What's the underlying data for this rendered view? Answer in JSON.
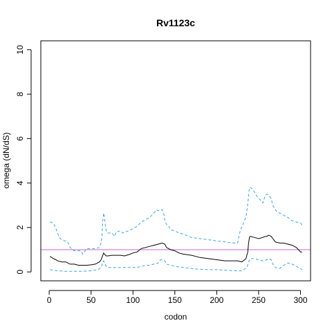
{
  "chart_data": {
    "type": "line",
    "title": "Rv1123c",
    "xlabel": "codon",
    "ylabel": "omega (dN/dS)",
    "xlim": [
      -10,
      312
    ],
    "ylim": [
      -0.4,
      10.4
    ],
    "xticks": [
      0,
      50,
      100,
      150,
      200,
      250,
      300
    ],
    "yticks": [
      0,
      2,
      4,
      6,
      8,
      10
    ],
    "grid": false,
    "legend": "none",
    "reference_line": {
      "y": 1,
      "color": "#cc66cc"
    },
    "series": [
      {
        "role": "upper",
        "color": "#33a6e6",
        "dash": true,
        "x": [
          1,
          5,
          8,
          10,
          12,
          15,
          18,
          20,
          22,
          25,
          28,
          30,
          35,
          38,
          40,
          45,
          50,
          55,
          60,
          62,
          63,
          64,
          65,
          66,
          67,
          68,
          70,
          75,
          78,
          80,
          85,
          88,
          90,
          95,
          100,
          105,
          110,
          115,
          120,
          125,
          128,
          130,
          135,
          137,
          138,
          140,
          142,
          145,
          150,
          155,
          160,
          170,
          180,
          190,
          200,
          210,
          220,
          225,
          227,
          229,
          231,
          233,
          235,
          236,
          238,
          239,
          240,
          242,
          245,
          248,
          250,
          252,
          255,
          258,
          260,
          262,
          265,
          267,
          270,
          272,
          275,
          280,
          285,
          290,
          295,
          300,
          302
        ],
        "y": [
          2.25,
          2.2,
          1.95,
          1.75,
          1.55,
          1.45,
          1.4,
          1.4,
          1.35,
          1.1,
          1.0,
          0.95,
          0.95,
          0.95,
          0.8,
          1.05,
          1.05,
          1.05,
          1.1,
          1.3,
          1.6,
          2.3,
          2.65,
          2.45,
          2.1,
          1.85,
          1.75,
          1.75,
          1.6,
          1.8,
          1.85,
          1.75,
          1.8,
          1.85,
          1.95,
          2.05,
          2.25,
          2.35,
          2.45,
          2.65,
          2.8,
          2.75,
          2.8,
          2.6,
          2.3,
          2.15,
          2.1,
          1.9,
          1.85,
          1.75,
          1.7,
          1.55,
          1.5,
          1.45,
          1.4,
          1.35,
          1.3,
          1.3,
          1.7,
          1.95,
          2.1,
          2.3,
          2.5,
          2.75,
          3.4,
          3.8,
          3.8,
          3.75,
          3.6,
          3.4,
          3.3,
          3.25,
          3.1,
          3.45,
          3.5,
          3.45,
          3.3,
          3.0,
          2.8,
          2.7,
          2.65,
          2.55,
          2.45,
          2.3,
          2.25,
          2.2,
          2.1
        ]
      },
      {
        "role": "estimate",
        "color": "#000000",
        "dash": false,
        "x": [
          1,
          5,
          8,
          10,
          15,
          20,
          25,
          30,
          35,
          40,
          45,
          50,
          55,
          60,
          62,
          64,
          65,
          66,
          68,
          70,
          75,
          80,
          85,
          90,
          95,
          100,
          105,
          110,
          115,
          120,
          125,
          130,
          135,
          138,
          140,
          145,
          150,
          155,
          160,
          170,
          180,
          190,
          200,
          210,
          220,
          225,
          230,
          235,
          237,
          238,
          239,
          240,
          245,
          250,
          255,
          258,
          260,
          262,
          265,
          267,
          270,
          275,
          280,
          285,
          290,
          295,
          300,
          302
        ],
        "y": [
          0.7,
          0.6,
          0.55,
          0.5,
          0.45,
          0.45,
          0.35,
          0.35,
          0.3,
          0.3,
          0.3,
          0.32,
          0.35,
          0.45,
          0.55,
          0.75,
          0.85,
          0.8,
          0.72,
          0.72,
          0.75,
          0.75,
          0.75,
          0.72,
          0.78,
          0.85,
          0.9,
          1.05,
          1.1,
          1.15,
          1.2,
          1.25,
          1.3,
          1.25,
          1.1,
          1.0,
          0.95,
          0.85,
          0.8,
          0.75,
          0.65,
          0.6,
          0.55,
          0.5,
          0.5,
          0.5,
          0.45,
          0.6,
          0.9,
          1.3,
          1.55,
          1.6,
          1.55,
          1.5,
          1.55,
          1.6,
          1.6,
          1.65,
          1.6,
          1.5,
          1.35,
          1.3,
          1.3,
          1.25,
          1.2,
          1.1,
          0.9,
          0.9
        ]
      },
      {
        "role": "lower",
        "color": "#33a6e6",
        "dash": true,
        "x": [
          1,
          10,
          20,
          30,
          40,
          50,
          58,
          62,
          64,
          65,
          66,
          68,
          70,
          80,
          90,
          100,
          105,
          110,
          115,
          120,
          125,
          130,
          133,
          135,
          138,
          140,
          145,
          150,
          160,
          170,
          180,
          190,
          200,
          210,
          220,
          230,
          236,
          238,
          240,
          245,
          250,
          255,
          260,
          262,
          265,
          267,
          270,
          275,
          280,
          285,
          290,
          295,
          300,
          302
        ],
        "y": [
          0.1,
          0.05,
          0.03,
          0.03,
          0.03,
          0.05,
          0.1,
          0.2,
          0.45,
          0.5,
          0.4,
          0.25,
          0.2,
          0.2,
          0.2,
          0.2,
          0.2,
          0.25,
          0.3,
          0.3,
          0.35,
          0.4,
          0.55,
          0.55,
          0.5,
          0.35,
          0.3,
          0.25,
          0.2,
          0.15,
          0.12,
          0.1,
          0.1,
          0.08,
          0.05,
          0.05,
          0.2,
          0.45,
          0.6,
          0.6,
          0.55,
          0.5,
          0.55,
          0.6,
          0.55,
          0.35,
          0.2,
          0.15,
          0.3,
          0.4,
          0.35,
          0.25,
          0.15,
          0.1
        ]
      }
    ]
  }
}
